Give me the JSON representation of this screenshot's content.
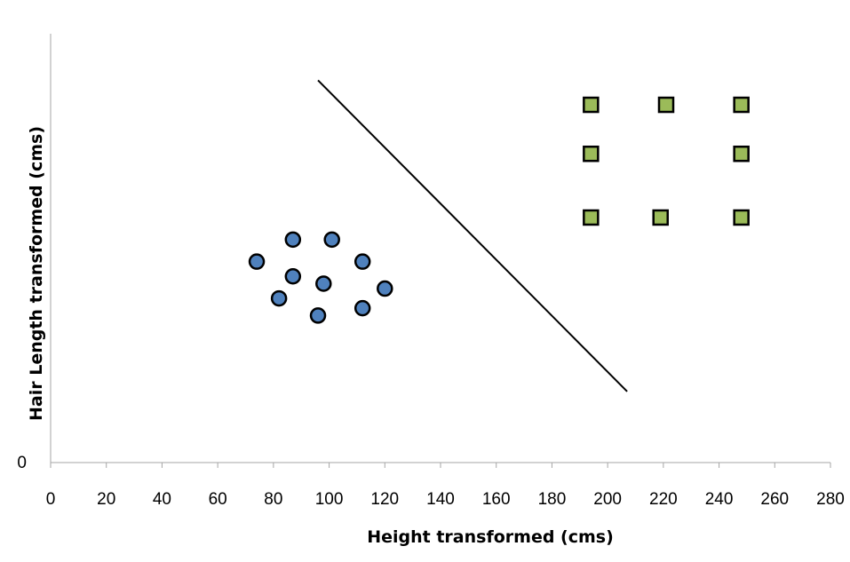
{
  "chart_data": {
    "type": "scatter",
    "xlabel": "Height transformed (cms)",
    "ylabel": "Hair Length transformed (cms)",
    "xlim": [
      0,
      280
    ],
    "x_ticks": [
      0,
      20,
      40,
      60,
      80,
      100,
      120,
      140,
      160,
      180,
      200,
      220,
      240,
      260,
      280
    ],
    "y_tick_labels": [
      "0"
    ],
    "grid": false,
    "legend": "none",
    "series": [
      {
        "marker": "circle",
        "color": "#4f81bd",
        "points": [
          {
            "x": 74,
            "y": 82
          },
          {
            "x": 87,
            "y": 91
          },
          {
            "x": 101,
            "y": 91
          },
          {
            "x": 112,
            "y": 82
          },
          {
            "x": 87,
            "y": 76
          },
          {
            "x": 98,
            "y": 73
          },
          {
            "x": 120,
            "y": 71
          },
          {
            "x": 82,
            "y": 67
          },
          {
            "x": 112,
            "y": 63
          },
          {
            "x": 96,
            "y": 60
          }
        ]
      },
      {
        "marker": "square",
        "color": "#9bbb59",
        "points": [
          {
            "x": 194,
            "y": 146
          },
          {
            "x": 221,
            "y": 146
          },
          {
            "x": 248,
            "y": 146
          },
          {
            "x": 194,
            "y": 126
          },
          {
            "x": 248,
            "y": 126
          },
          {
            "x": 194,
            "y": 100
          },
          {
            "x": 219,
            "y": 100
          },
          {
            "x": 248,
            "y": 100
          }
        ]
      }
    ],
    "separator_line": {
      "color": "#000000",
      "points": [
        {
          "x": 96,
          "y": 156
        },
        {
          "x": 207,
          "y": 29
        }
      ]
    },
    "ylim": [
      0,
      175
    ]
  }
}
